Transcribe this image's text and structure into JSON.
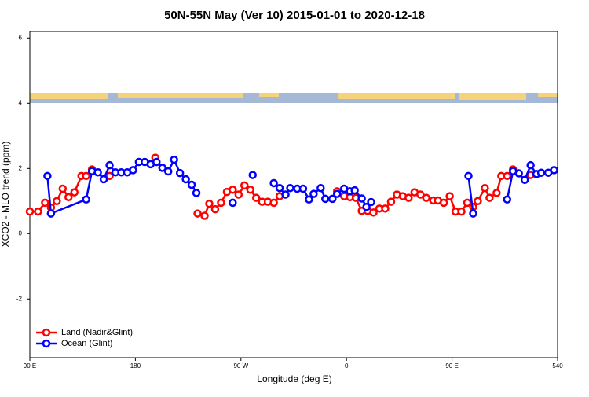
{
  "chart_data": {
    "type": "line",
    "title": "50N-55N May (Ver 10)   2015-01-01 to 2020-12-18",
    "x_label": "Longitude (deg E)",
    "y_label": "XCO2 - MLO trend (ppm)",
    "xlim": [
      90,
      540
    ],
    "ylim": [
      -3.8,
      6.2
    ],
    "xticks": [
      {
        "value": 90,
        "label": "90 E"
      },
      180,
      {
        "value": 270,
        "label": "90 W"
      },
      {
        "value": 360,
        "label": "0"
      },
      {
        "value": 450,
        "label": "90 E"
      },
      540
    ],
    "yticks": [
      -2,
      0,
      2,
      4,
      6
    ],
    "legend": "bottom-left",
    "series": [
      {
        "name": "Land (Nadir&Glint)",
        "color": "#ff0000",
        "x": [
          90,
          97,
          103,
          108,
          113,
          118,
          123,
          128,
          134,
          138,
          143,
          150,
          158,
          180,
          197,
          215,
          233,
          239,
          243,
          248,
          253,
          258,
          263,
          268,
          273,
          278,
          283,
          288,
          293,
          298,
          303,
          330,
          352,
          358,
          363,
          368,
          373,
          378,
          383,
          388,
          393,
          398,
          403,
          408,
          413,
          418,
          423,
          428,
          434,
          438,
          443,
          448,
          453,
          458,
          463,
          468,
          472,
          478,
          482,
          488,
          492,
          497,
          502,
          510,
          517
        ],
        "values": [
          0.68,
          0.68,
          0.95,
          0.8,
          1.0,
          1.38,
          1.12,
          1.27,
          1.77,
          1.77,
          1.97,
          null,
          1.77,
          null,
          2.33,
          null,
          0.62,
          0.55,
          0.92,
          0.75,
          0.95,
          1.28,
          1.35,
          1.2,
          1.48,
          1.35,
          1.1,
          0.98,
          0.98,
          0.95,
          1.15,
          null,
          1.3,
          1.15,
          1.12,
          1.1,
          0.7,
          0.7,
          0.65,
          0.77,
          0.77,
          0.98,
          1.2,
          1.15,
          1.1,
          1.27,
          1.2,
          1.1,
          1.02,
          1.02,
          0.95,
          1.15,
          0.68,
          0.68,
          0.95,
          0.82,
          1.0,
          1.4,
          1.1,
          1.25,
          1.77,
          1.77,
          1.97,
          null,
          1.8
        ]
      },
      {
        "name": "Ocean (Glint)",
        "color": "#0000ff",
        "x": [
          105,
          108,
          138,
          143,
          148,
          153,
          158,
          163,
          168,
          173,
          178,
          183,
          188,
          193,
          198,
          203,
          208,
          213,
          218,
          223,
          228,
          232,
          250,
          263,
          270,
          280,
          290,
          298,
          303,
          308,
          312,
          318,
          323,
          328,
          332,
          338,
          342,
          348,
          352,
          358,
          363,
          367,
          373,
          377,
          381,
          420,
          464,
          468,
          480,
          497,
          502,
          507,
          512,
          517,
          522,
          526,
          532,
          537
        ],
        "values": [
          1.77,
          0.62,
          1.05,
          1.92,
          1.88,
          1.67,
          2.1,
          1.88,
          1.88,
          1.88,
          1.95,
          2.2,
          2.2,
          2.13,
          2.2,
          2.02,
          1.91,
          2.27,
          1.86,
          1.67,
          1.5,
          1.25,
          null,
          0.95,
          null,
          1.8,
          null,
          1.55,
          1.4,
          1.2,
          1.4,
          1.38,
          1.38,
          1.05,
          1.22,
          1.4,
          1.07,
          1.07,
          1.22,
          1.38,
          1.3,
          1.33,
          1.08,
          0.82,
          0.97,
          null,
          1.77,
          0.62,
          null,
          1.05,
          1.92,
          1.85,
          1.65,
          2.1,
          1.83,
          1.87,
          1.87,
          1.95
        ]
      }
    ]
  }
}
